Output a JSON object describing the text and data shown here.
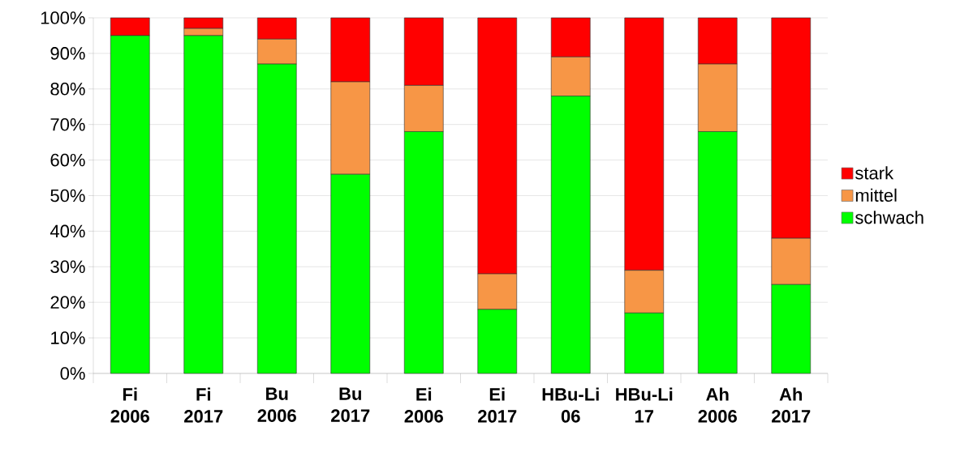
{
  "chart_data": {
    "type": "bar",
    "stacked": true,
    "categories": [
      "Fi 2006",
      "Fi 2017",
      "Bu 2006",
      "Bu 2017",
      "Ei 2006",
      "Ei 2017",
      "HBu-Li 06",
      "HBu-Li 17",
      "Ah 2006",
      "Ah 2017"
    ],
    "series": [
      {
        "name": "schwach",
        "color": "#00ff00",
        "values": [
          95,
          95,
          87,
          56,
          68,
          18,
          78,
          17,
          68,
          25
        ]
      },
      {
        "name": "mittel",
        "color": "#f79646",
        "values": [
          0,
          2,
          7,
          26,
          13,
          10,
          11,
          12,
          19,
          13
        ]
      },
      {
        "name": "stark",
        "color": "#ff0000",
        "values": [
          5,
          3,
          6,
          18,
          19,
          72,
          11,
          71,
          13,
          62
        ]
      }
    ],
    "ylim": [
      0,
      100
    ],
    "yticks": [
      {
        "value": 0,
        "label": "0%"
      },
      {
        "value": 10,
        "label": "10%"
      },
      {
        "value": 20,
        "label": "20%"
      },
      {
        "value": 30,
        "label": "30%"
      },
      {
        "value": 40,
        "label": "40%"
      },
      {
        "value": 50,
        "label": "50%"
      },
      {
        "value": 60,
        "label": "60%"
      },
      {
        "value": 70,
        "label": "70%"
      },
      {
        "value": 80,
        "label": "80%"
      },
      {
        "value": 90,
        "label": "90%"
      },
      {
        "value": 100,
        "label": "100%"
      }
    ],
    "grid": "y",
    "legend": "right"
  }
}
